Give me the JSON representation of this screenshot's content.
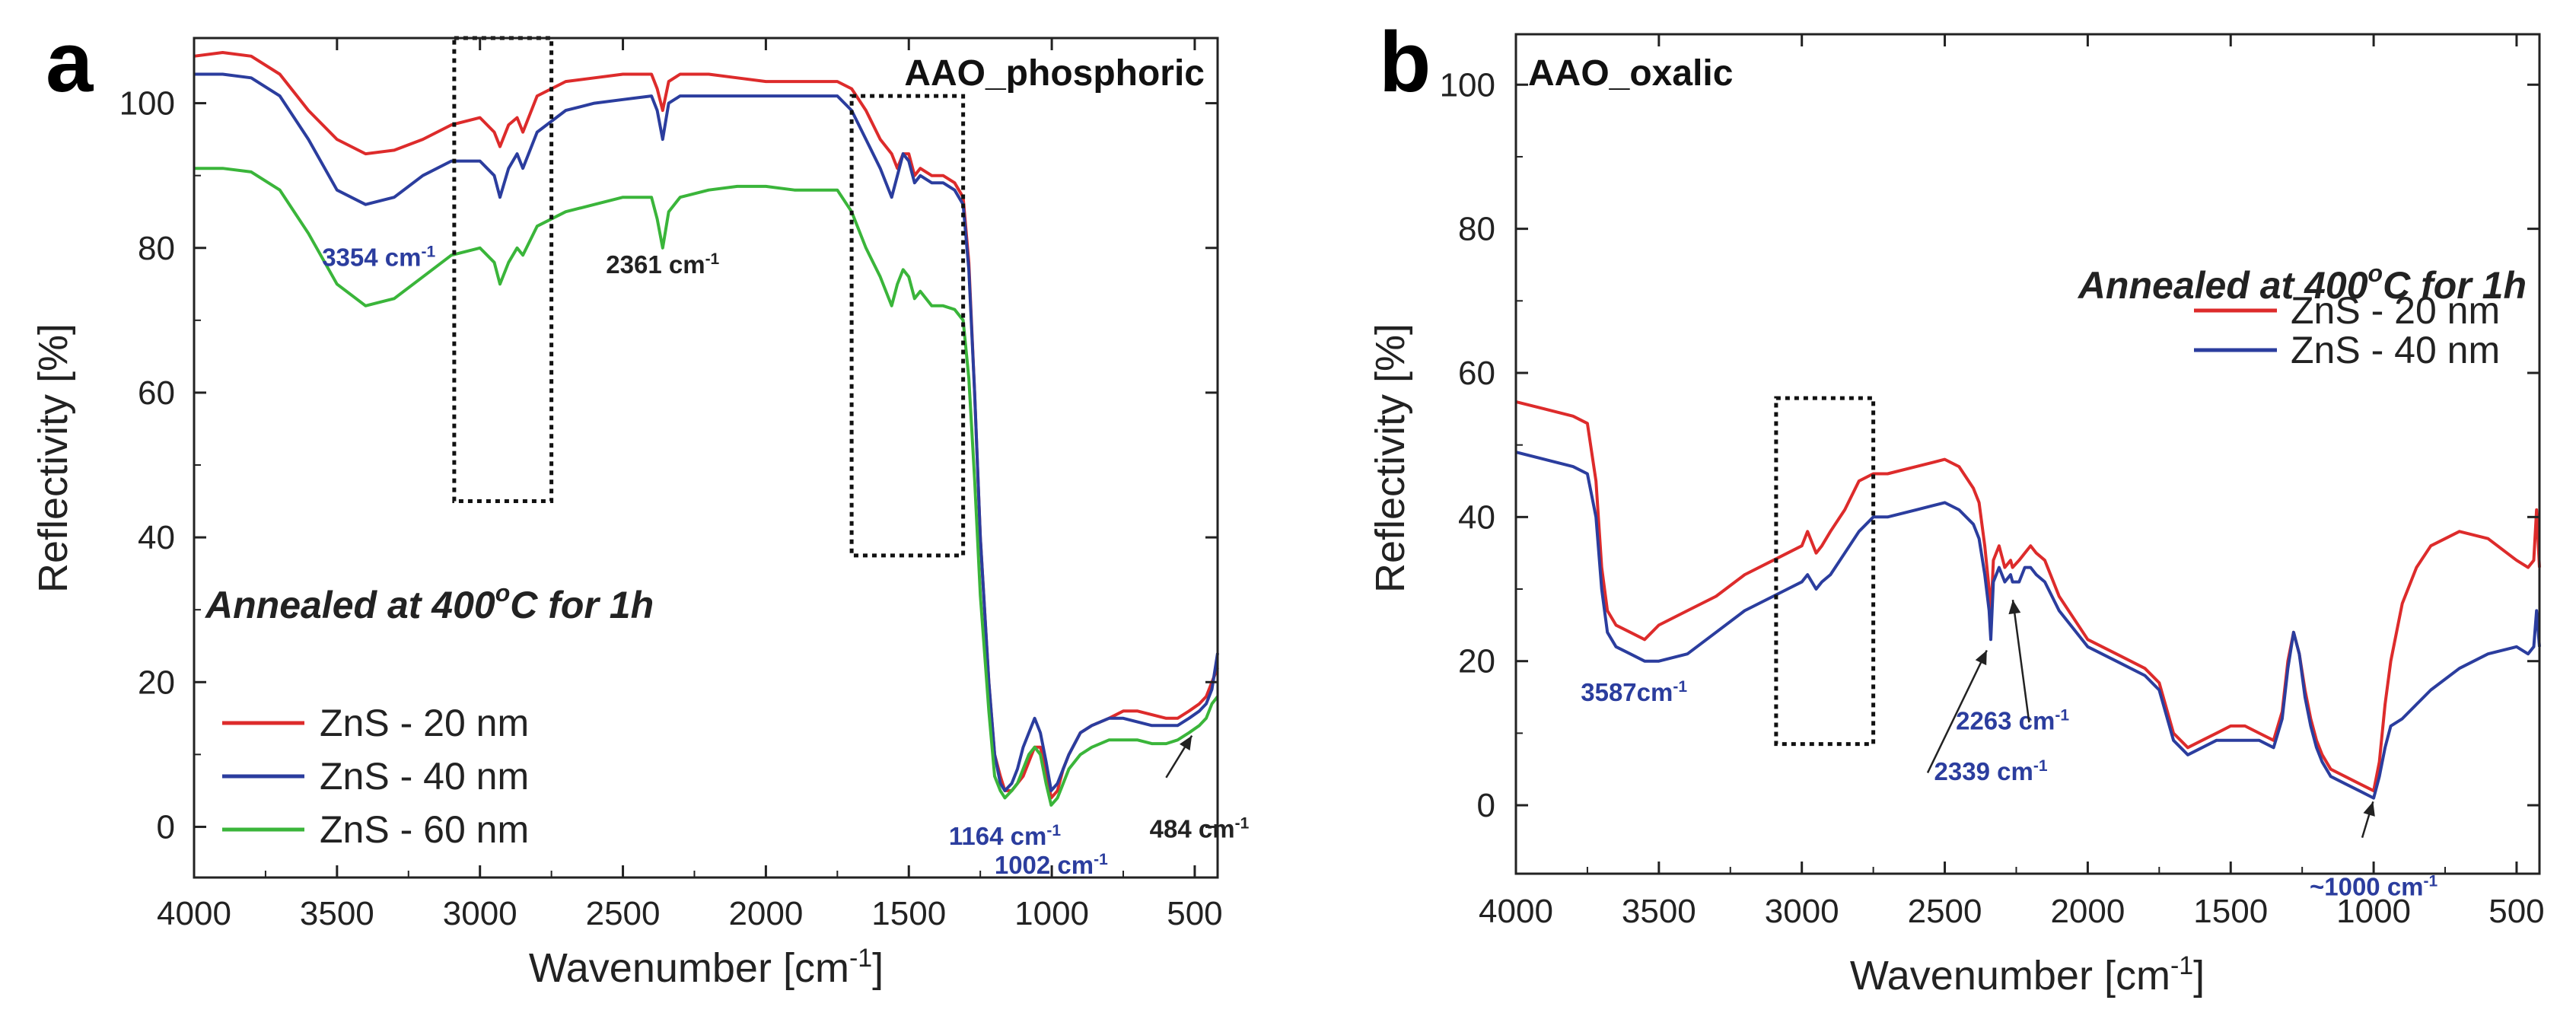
{
  "chart_data": [
    {
      "panel_label": "a",
      "type": "line",
      "title": "AAO_phosphoric",
      "xlabel": "Wavenumber [cm",
      "xlabel_sup": "-1",
      "xlabel_end": "]",
      "ylabel": "Reflectivity [%]",
      "xlim": [
        4000,
        420
      ],
      "ylim": [
        -7,
        109
      ],
      "xticks": [
        4000,
        3500,
        3000,
        2500,
        2000,
        1500,
        1000,
        500
      ],
      "yticks": [
        0,
        20,
        40,
        60,
        80,
        100
      ],
      "annotation_title": "Annealed at 400",
      "annotation_sup": "o",
      "annotation_end": "C for 1h",
      "dotted_boxes": [
        {
          "x0": 3090,
          "x1": 2750,
          "y0": 45,
          "y1": 109
        },
        {
          "x0": 1700,
          "x1": 1310,
          "y0": 37.5,
          "y1": 101
        }
      ],
      "series": [
        {
          "name": "ZnS - 20 nm",
          "color": "#dd2b2b",
          "x": [
            4000,
            3900,
            3800,
            3700,
            3600,
            3500,
            3400,
            3300,
            3200,
            3100,
            3000,
            2950,
            2930,
            2900,
            2870,
            2850,
            2800,
            2700,
            2600,
            2500,
            2400,
            2380,
            2361,
            2340,
            2300,
            2200,
            2100,
            2000,
            1900,
            1800,
            1750,
            1700,
            1650,
            1600,
            1560,
            1540,
            1520,
            1500,
            1480,
            1460,
            1420,
            1380,
            1340,
            1310,
            1290,
            1270,
            1250,
            1220,
            1200,
            1180,
            1164,
            1140,
            1120,
            1100,
            1080,
            1060,
            1040,
            1020,
            1002,
            980,
            960,
            940,
            900,
            860,
            800,
            750,
            700,
            650,
            600,
            560,
            520,
            484,
            460,
            440,
            420
          ],
          "y": [
            106.5,
            107,
            106.5,
            104,
            99,
            95,
            93,
            93.5,
            95,
            97,
            98,
            96,
            94,
            97,
            98,
            96,
            101,
            103,
            103.5,
            104,
            104,
            102,
            99,
            103,
            104,
            104,
            103.5,
            103,
            103,
            103,
            103,
            102,
            99,
            95,
            93,
            91,
            93,
            93,
            90,
            91,
            90,
            90,
            89,
            87,
            78,
            60,
            40,
            20,
            10,
            7,
            5,
            5,
            6,
            7,
            9,
            11,
            11,
            8,
            4,
            5,
            8,
            10,
            13,
            14,
            15,
            16,
            16,
            15.5,
            15,
            15,
            16,
            17,
            18,
            20,
            22
          ]
        },
        {
          "name": "ZnS - 40 nm",
          "color": "#2b3d9e",
          "x": [
            4000,
            3900,
            3800,
            3700,
            3600,
            3500,
            3400,
            3300,
            3200,
            3100,
            3000,
            2950,
            2930,
            2900,
            2870,
            2850,
            2800,
            2700,
            2600,
            2500,
            2400,
            2380,
            2361,
            2340,
            2300,
            2200,
            2100,
            2000,
            1900,
            1800,
            1750,
            1700,
            1650,
            1600,
            1560,
            1540,
            1520,
            1500,
            1480,
            1460,
            1420,
            1380,
            1340,
            1310,
            1290,
            1270,
            1250,
            1220,
            1200,
            1180,
            1164,
            1140,
            1120,
            1100,
            1080,
            1060,
            1040,
            1020,
            1002,
            980,
            960,
            940,
            900,
            860,
            800,
            750,
            700,
            650,
            600,
            560,
            520,
            484,
            460,
            440,
            420
          ],
          "y": [
            104,
            104,
            103.5,
            101,
            95,
            88,
            86,
            87,
            90,
            92,
            92,
            90,
            87,
            91,
            93,
            91,
            96,
            99,
            100,
            100.5,
            101,
            99,
            95,
            100,
            101,
            101,
            101,
            101,
            101,
            101,
            101,
            99,
            95,
            91,
            87,
            90,
            93,
            92,
            89,
            90,
            89,
            89,
            88,
            86,
            77,
            60,
            40,
            20,
            10,
            6,
            5,
            6,
            8,
            11,
            13,
            15,
            13,
            9,
            5,
            6,
            8,
            10,
            13,
            14,
            15,
            15,
            14.5,
            14,
            14,
            14,
            15,
            16,
            17,
            19,
            24
          ]
        },
        {
          "name": "ZnS - 60 nm",
          "color": "#3ab53a",
          "x": [
            4000,
            3900,
            3800,
            3700,
            3600,
            3500,
            3400,
            3300,
            3200,
            3100,
            3000,
            2950,
            2930,
            2900,
            2870,
            2850,
            2800,
            2700,
            2600,
            2500,
            2400,
            2380,
            2361,
            2340,
            2300,
            2200,
            2100,
            2000,
            1900,
            1800,
            1750,
            1700,
            1650,
            1600,
            1560,
            1540,
            1520,
            1500,
            1480,
            1460,
            1420,
            1380,
            1340,
            1310,
            1290,
            1270,
            1250,
            1220,
            1200,
            1180,
            1164,
            1140,
            1120,
            1100,
            1080,
            1060,
            1040,
            1020,
            1002,
            980,
            960,
            940,
            900,
            860,
            800,
            750,
            700,
            650,
            600,
            560,
            520,
            484,
            460,
            440,
            420
          ],
          "y": [
            91,
            91,
            90.5,
            88,
            82,
            75,
            72,
            73,
            76,
            79,
            80,
            78,
            75,
            78,
            80,
            79,
            83,
            85,
            86,
            87,
            87,
            84,
            80,
            85,
            87,
            88,
            88.5,
            88.5,
            88,
            88,
            88,
            85,
            80,
            76,
            72,
            75,
            77,
            76,
            73,
            74,
            72,
            72,
            71.5,
            70,
            62,
            48,
            32,
            16,
            7,
            5,
            4,
            5,
            6,
            8,
            10,
            11,
            10,
            6,
            3,
            4,
            6,
            8,
            10,
            11,
            12,
            12,
            12,
            11.5,
            11.5,
            12,
            13,
            14,
            15,
            17,
            18
          ]
        }
      ],
      "labels": [
        {
          "text": "3354 cm",
          "sup": "-1",
          "x": 3354,
          "y": 77.5,
          "color": "#2b3d9e"
        },
        {
          "text": "2361 cm",
          "sup": "-1",
          "x": 2361,
          "y": 76.5,
          "color": "#222222"
        },
        {
          "text": "1164 cm",
          "sup": "-1",
          "x": 1164,
          "y": -2.5,
          "color": "#2b3d9e"
        },
        {
          "text": "1002 cm",
          "sup": "-1",
          "x": 1002,
          "y": -6.5,
          "color": "#2b3d9e"
        },
        {
          "text": "484 cm",
          "sup": "-1",
          "x": 484,
          "y": -1.5,
          "color": "#222222"
        }
      ],
      "arrows": [
        {
          "from": [
            600,
            6.8
          ],
          "to": [
            510,
            12.6
          ]
        }
      ]
    },
    {
      "panel_label": "b",
      "type": "line",
      "title": "AAO_oxalic",
      "xlabel": "Wavenumber [cm",
      "xlabel_sup": "-1",
      "xlabel_end": "]",
      "ylabel": "Reflectivity [%]",
      "xlim": [
        4000,
        420
      ],
      "ylim": [
        -9.5,
        107
      ],
      "xticks": [
        4000,
        3500,
        3000,
        2500,
        2000,
        1500,
        1000,
        500
      ],
      "yticks": [
        0,
        20,
        40,
        60,
        80,
        100
      ],
      "annotation_title": "Annealed at 400",
      "annotation_sup": "o",
      "annotation_end": "C for 1h",
      "dotted_boxes": [
        {
          "x0": 3090,
          "x1": 2750,
          "y0": 8.5,
          "y1": 56.5
        }
      ],
      "series": [
        {
          "name": "ZnS - 20 nm",
          "color": "#dd2b2b",
          "x": [
            4000,
            3900,
            3800,
            3750,
            3720,
            3700,
            3680,
            3650,
            3600,
            3550,
            3500,
            3400,
            3300,
            3200,
            3100,
            3050,
            3000,
            2980,
            2950,
            2930,
            2900,
            2850,
            2800,
            2750,
            2700,
            2600,
            2500,
            2450,
            2400,
            2380,
            2360,
            2345,
            2339,
            2330,
            2310,
            2290,
            2270,
            2263,
            2240,
            2220,
            2200,
            2180,
            2150,
            2100,
            2000,
            1900,
            1800,
            1750,
            1700,
            1650,
            1600,
            1550,
            1500,
            1450,
            1400,
            1350,
            1320,
            1300,
            1280,
            1260,
            1240,
            1220,
            1200,
            1180,
            1150,
            1100,
            1050,
            1000,
            980,
            960,
            940,
            900,
            850,
            800,
            700,
            600,
            500,
            460,
            440,
            430,
            420
          ],
          "y": [
            56,
            55,
            54,
            53,
            45,
            33,
            27,
            25,
            24,
            23,
            25,
            27,
            29,
            32,
            34,
            35,
            36,
            38,
            35,
            36,
            38,
            41,
            45,
            46,
            46,
            47,
            48,
            47,
            44,
            42,
            36,
            30,
            26,
            34,
            36,
            33,
            34,
            33,
            34,
            35,
            36,
            35,
            34,
            29,
            23,
            21,
            19,
            17,
            10,
            8,
            9,
            10,
            11,
            11,
            10,
            9,
            13,
            20,
            24,
            21,
            16,
            12,
            9,
            7,
            5,
            4,
            3,
            2,
            6,
            14,
            20,
            28,
            33,
            36,
            38,
            37,
            34,
            33,
            34,
            41,
            33
          ]
        },
        {
          "name": "ZnS - 40 nm",
          "color": "#2b3d9e",
          "x": [
            4000,
            3900,
            3800,
            3750,
            3720,
            3700,
            3680,
            3650,
            3600,
            3550,
            3500,
            3400,
            3300,
            3200,
            3100,
            3050,
            3000,
            2980,
            2950,
            2930,
            2900,
            2850,
            2800,
            2750,
            2700,
            2600,
            2500,
            2450,
            2400,
            2380,
            2360,
            2345,
            2339,
            2330,
            2310,
            2290,
            2270,
            2263,
            2240,
            2220,
            2200,
            2180,
            2150,
            2100,
            2000,
            1900,
            1800,
            1750,
            1700,
            1650,
            1600,
            1550,
            1500,
            1450,
            1400,
            1350,
            1320,
            1300,
            1280,
            1260,
            1240,
            1220,
            1200,
            1180,
            1150,
            1100,
            1050,
            1000,
            980,
            960,
            940,
            900,
            850,
            800,
            700,
            600,
            500,
            460,
            440,
            430,
            420
          ],
          "y": [
            49,
            48,
            47,
            46,
            40,
            30,
            24,
            22,
            21,
            20,
            20,
            21,
            24,
            27,
            29,
            30,
            31,
            32,
            30,
            31,
            32,
            35,
            38,
            40,
            40,
            41,
            42,
            41,
            39,
            37,
            32,
            27,
            23,
            31,
            33,
            31,
            32,
            31,
            31,
            33,
            33,
            32,
            31,
            27,
            22,
            20,
            18,
            16,
            9,
            7,
            8,
            9,
            9,
            9,
            9,
            8,
            12,
            19,
            24,
            21,
            15,
            11,
            8,
            6,
            4,
            3,
            2,
            1,
            4,
            8,
            11,
            12,
            14,
            16,
            19,
            21,
            22,
            21,
            22,
            27,
            22
          ]
        }
      ],
      "labels": [
        {
          "text": "3587cm",
          "sup": "-1",
          "x": 3587,
          "y": 14.5,
          "color": "#2b3d9e"
        },
        {
          "text": "2339 cm",
          "sup": "-1",
          "x": 2339,
          "y": 3.5,
          "color": "#2b3d9e"
        },
        {
          "text": "2263 cm",
          "sup": "-1",
          "x": 2263,
          "y": 10.5,
          "color": "#2b3d9e"
        },
        {
          "text": "~1000 cm",
          "sup": "-1",
          "x": 1000,
          "y": -12.5,
          "color": "#2b3d9e"
        }
      ],
      "arrows": [
        {
          "from": [
            2560,
            4.5
          ],
          "to": [
            2353,
            21.5
          ]
        },
        {
          "from": [
            2205,
            11.5
          ],
          "to": [
            2262,
            28.5
          ]
        },
        {
          "from": [
            1040,
            -4.5
          ],
          "to": [
            1002,
            0.5
          ]
        }
      ]
    }
  ]
}
